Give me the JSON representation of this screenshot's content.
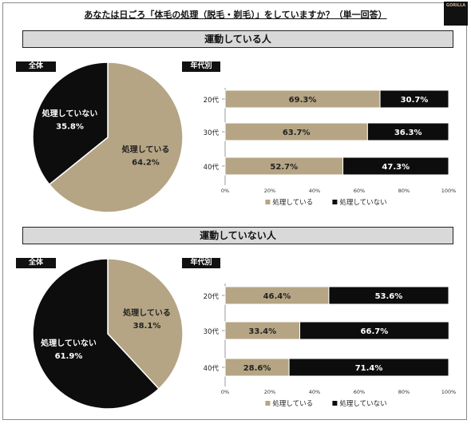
{
  "title": "あなたは日ごろ「体毛の処理（脱毛・剃毛）」をしていますか？（単一回答）",
  "logo_text": "GORILLA",
  "colors": {
    "treated": "#b5a584",
    "untreated": "#0d0d0d"
  },
  "chart_data": [
    {
      "type": "pie",
      "group": "運動している人",
      "tag": "全体",
      "slices": [
        {
          "name": "処理している",
          "value": 64.2
        },
        {
          "name": "処理していない",
          "value": 35.8
        }
      ]
    },
    {
      "type": "bar",
      "stacked": true,
      "orientation": "horizontal",
      "group": "運動している人",
      "tag": "年代別",
      "categories": [
        "20代",
        "30代",
        "40代"
      ],
      "series": [
        {
          "name": "処理している",
          "values": [
            69.3,
            63.7,
            52.7
          ]
        },
        {
          "name": "処理していない",
          "values": [
            30.7,
            36.3,
            47.3
          ]
        }
      ],
      "xlim": [
        0,
        100
      ],
      "xticks": [
        "0%",
        "20%",
        "40%",
        "60%",
        "80%",
        "100%"
      ],
      "legend": "bottom"
    },
    {
      "type": "pie",
      "group": "運動していない人",
      "tag": "全体",
      "slices": [
        {
          "name": "処理している",
          "value": 38.1
        },
        {
          "name": "処理していない",
          "value": 61.9
        }
      ]
    },
    {
      "type": "bar",
      "stacked": true,
      "orientation": "horizontal",
      "group": "運動していない人",
      "tag": "年代別",
      "categories": [
        "20代",
        "30代",
        "40代"
      ],
      "series": [
        {
          "name": "処理している",
          "values": [
            46.4,
            33.4,
            28.6
          ]
        },
        {
          "name": "処理していない",
          "values": [
            53.6,
            66.7,
            71.4
          ]
        }
      ],
      "xlim": [
        0,
        100
      ],
      "xticks": [
        "0%",
        "20%",
        "40%",
        "60%",
        "80%",
        "100%"
      ],
      "legend": "bottom"
    }
  ]
}
